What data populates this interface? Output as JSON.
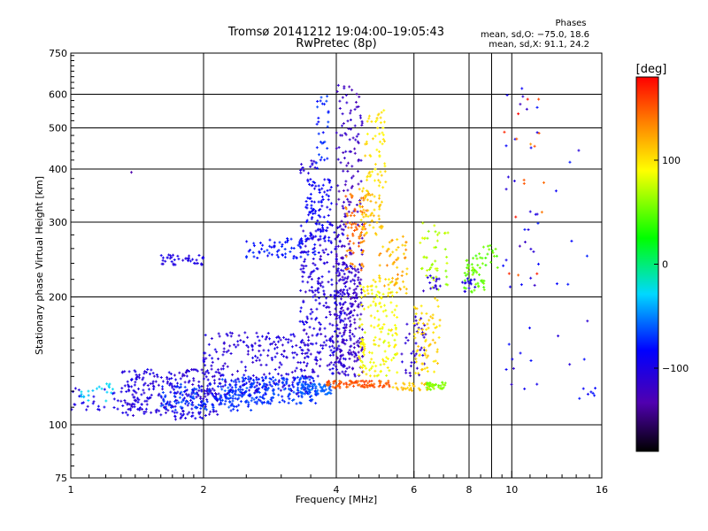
{
  "chart_data": {
    "type": "scatter",
    "title": "Tromsø 20141212 19:04:00–19:05:43",
    "subtitle": "RwPretec (8p)",
    "xlabel": "Frequency [MHz]",
    "ylabel": "Stationary phase Virtual Height [km]",
    "x_scale": "log",
    "y_scale": "log",
    "xlim": [
      1,
      16
    ],
    "ylim": [
      75,
      750
    ],
    "x_ticks": [
      1,
      2,
      4,
      6,
      8,
      10,
      16
    ],
    "x_tick_labels": [
      "1",
      "2",
      "4",
      "6",
      "8",
      "10",
      "16"
    ],
    "x_grid": [
      2,
      4,
      6,
      8,
      9,
      10
    ],
    "y_ticks": [
      75,
      100,
      200,
      300,
      400,
      500,
      600,
      750
    ],
    "y_tick_labels": [
      "75",
      "100",
      "200",
      "300",
      "400",
      "500",
      "600",
      "750"
    ],
    "y_grid": [
      100,
      200,
      300,
      400,
      500,
      600
    ],
    "grid": true,
    "stats": {
      "header": "Phases",
      "line1": "mean, sd,O: −75.0, 18.6",
      "line2": "mean, sd,X:  91.1, 24.2"
    },
    "colorbar": {
      "label": "[deg]",
      "range": [
        -180,
        180
      ],
      "ticks": [
        100,
        0,
        -100
      ],
      "tick_labels": [
        "100",
        "0",
        "−100"
      ]
    },
    "clusters": [
      {
        "x": [
          1.0,
          1.45
        ],
        "y": [
          108,
          124
        ],
        "n": 40,
        "phase": -100,
        "spread": 8
      },
      {
        "x": [
          1.05,
          1.25
        ],
        "y": [
          113,
          125
        ],
        "n": 20,
        "phase": -30,
        "spread": 6
      },
      {
        "x": [
          1.3,
          2.2
        ],
        "y": [
          105,
          135
        ],
        "n": 260,
        "phase": -105,
        "spread": 12
      },
      {
        "x": [
          1.6,
          2.6
        ],
        "y": [
          108,
          125
        ],
        "n": 120,
        "phase": -70,
        "spread": 10
      },
      {
        "x": [
          1.7,
          2.0
        ],
        "y": [
          103,
          107
        ],
        "n": 18,
        "phase": -100,
        "spread": 8
      },
      {
        "x": [
          2.2,
          3.6
        ],
        "y": [
          112,
          130
        ],
        "n": 260,
        "phase": -70,
        "spread": 12
      },
      {
        "x": [
          2.0,
          3.5
        ],
        "y": [
          118,
          165
        ],
        "n": 220,
        "phase": -105,
        "spread": 12
      },
      {
        "x": [
          3.3,
          3.9
        ],
        "y": [
          118,
          125
        ],
        "n": 60,
        "phase": -60,
        "spread": 8
      },
      {
        "x": [
          3.8,
          5.3
        ],
        "y": [
          122,
          127
        ],
        "n": 90,
        "phase": 150,
        "spread": 12
      },
      {
        "x": [
          5.3,
          6.5
        ],
        "y": [
          120,
          126
        ],
        "n": 30,
        "phase": 110,
        "spread": 8
      },
      {
        "x": [
          6.4,
          7.1
        ],
        "y": [
          121,
          126
        ],
        "n": 35,
        "phase": 60,
        "spread": 8
      },
      {
        "x": [
          1.6,
          2.0
        ],
        "y": [
          238,
          252
        ],
        "n": 40,
        "phase": -100,
        "spread": 8
      },
      {
        "x": [
          2.5,
          3.6
        ],
        "y": [
          246,
          275
        ],
        "n": 70,
        "phase": -80,
        "spread": 10
      },
      {
        "x": [
          3.3,
          4.2
        ],
        "y": [
          130,
          300
        ],
        "n": 300,
        "phase": -105,
        "spread": 14
      },
      {
        "x": [
          3.4,
          3.9
        ],
        "y": [
          270,
          380
        ],
        "n": 100,
        "phase": -90,
        "spread": 10
      },
      {
        "x": [
          3.3,
          3.6
        ],
        "y": [
          390,
          420
        ],
        "n": 14,
        "phase": -110,
        "spread": 8
      },
      {
        "x": [
          3.6,
          3.85
        ],
        "y": [
          400,
          620
        ],
        "n": 30,
        "phase": -75,
        "spread": 10
      },
      {
        "x": [
          4.0,
          4.6
        ],
        "y": [
          240,
          630
        ],
        "n": 130,
        "phase": -120,
        "spread": 10
      },
      {
        "x": [
          4.0,
          4.6
        ],
        "y": [
          130,
          240
        ],
        "n": 220,
        "phase": -115,
        "spread": 12
      },
      {
        "x": [
          4.2,
          4.7
        ],
        "y": [
          230,
          350
        ],
        "n": 70,
        "phase": 140,
        "spread": 15
      },
      {
        "x": [
          4.5,
          5.1
        ],
        "y": [
          280,
          360
        ],
        "n": 60,
        "phase": 110,
        "spread": 12
      },
      {
        "x": [
          4.6,
          5.2
        ],
        "y": [
          360,
          550
        ],
        "n": 60,
        "phase": 100,
        "spread": 10
      },
      {
        "x": [
          4.5,
          5.5
        ],
        "y": [
          130,
          220
        ],
        "n": 160,
        "phase": 90,
        "spread": 12
      },
      {
        "x": [
          5.0,
          5.8
        ],
        "y": [
          200,
          280
        ],
        "n": 60,
        "phase": 120,
        "spread": 20
      },
      {
        "x": [
          5.6,
          6.4
        ],
        "y": [
          130,
          180
        ],
        "n": 40,
        "phase": -110,
        "spread": 10
      },
      {
        "x": [
          6.0,
          6.9
        ],
        "y": [
          130,
          200
        ],
        "n": 70,
        "phase": 105,
        "spread": 10
      },
      {
        "x": [
          6.2,
          7.2
        ],
        "y": [
          205,
          300
        ],
        "n": 45,
        "phase": 70,
        "spread": 12
      },
      {
        "x": [
          6.3,
          6.9
        ],
        "y": [
          205,
          225
        ],
        "n": 15,
        "phase": -110,
        "spread": 8
      },
      {
        "x": [
          7.8,
          8.7
        ],
        "y": [
          205,
          250
        ],
        "n": 45,
        "phase": 50,
        "spread": 12
      },
      {
        "x": [
          7.7,
          8.3
        ],
        "y": [
          205,
          225
        ],
        "n": 15,
        "phase": -100,
        "spread": 8
      },
      {
        "x": [
          8.3,
          9.3
        ],
        "y": [
          230,
          270
        ],
        "n": 20,
        "phase": 50,
        "spread": 10
      },
      {
        "x": [
          9.5,
          11.5
        ],
        "y": [
          100,
          620
        ],
        "n": 40,
        "phase": -100,
        "spread": 25
      },
      {
        "x": [
          9.5,
          12.0
        ],
        "y": [
          220,
          600
        ],
        "n": 16,
        "phase": 150,
        "spread": 30
      },
      {
        "x": [
          12.5,
          15.0
        ],
        "y": [
          120,
          500
        ],
        "n": 12,
        "phase": -95,
        "spread": 20
      },
      {
        "x": [
          14.0,
          15.5
        ],
        "y": [
          115,
          125
        ],
        "n": 6,
        "phase": -85,
        "spread": 8
      },
      {
        "x": [
          1.3,
          1.4
        ],
        "y": [
          392,
          396
        ],
        "n": 1,
        "phase": -130,
        "spread": 4
      }
    ]
  }
}
